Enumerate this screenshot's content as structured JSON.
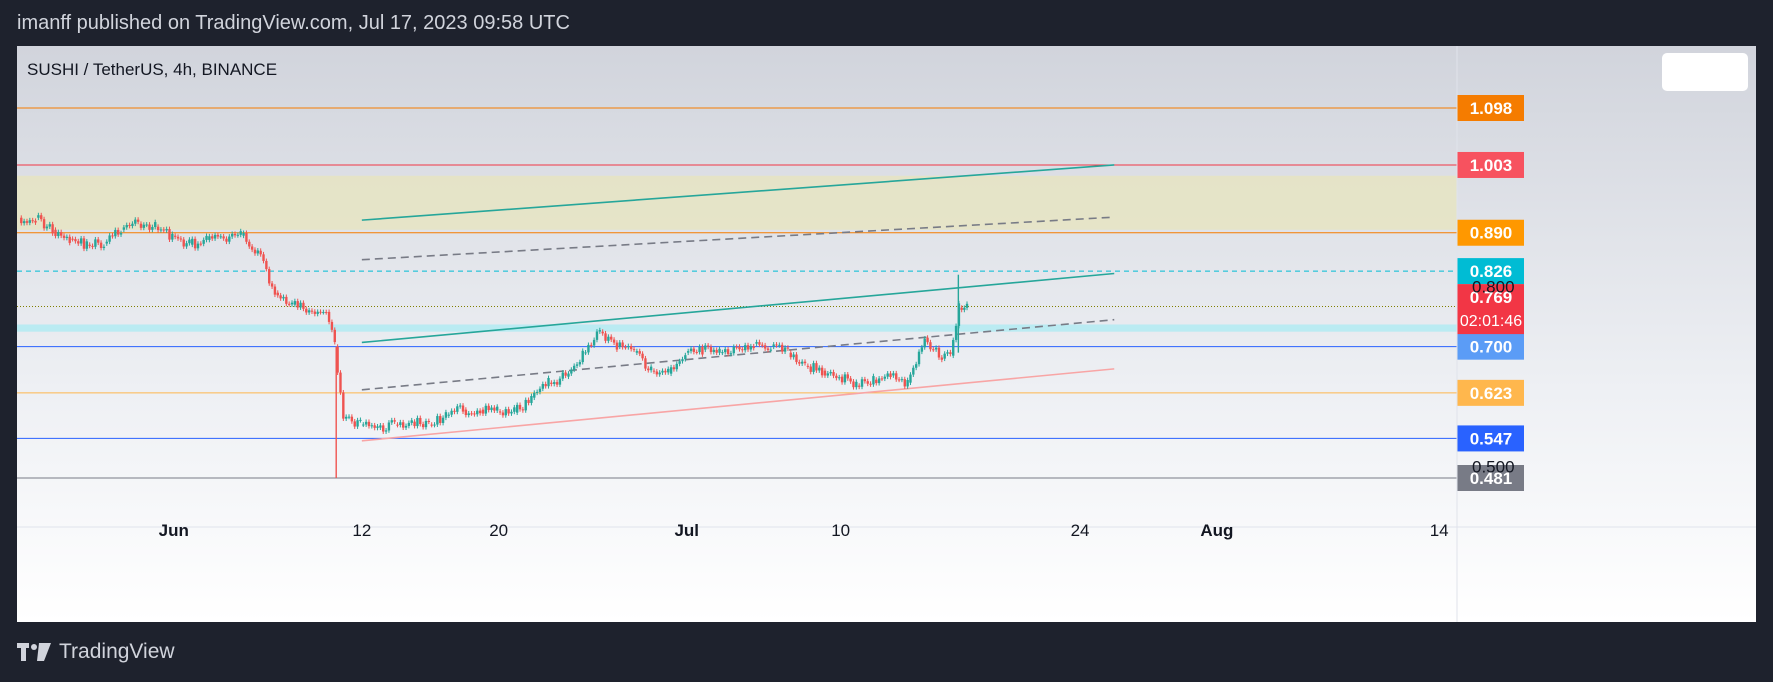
{
  "header": {
    "text": "imanff published on TradingView.com, Jul 17, 2023 09:58 UTC"
  },
  "footer": {
    "brand": "TradingView",
    "logo_icon": "tradingview-logo-icon"
  },
  "chart_data": {
    "type": "candlestick",
    "title": "SUSHI / TetherUS, 4h, BINANCE",
    "ylim": [
      0.45,
      1.15
    ],
    "x_tick_labels": [
      {
        "label": "Jun",
        "date": "2023-06-01"
      },
      {
        "label": "12",
        "date": "2023-06-12"
      },
      {
        "label": "20",
        "date": "2023-06-20"
      },
      {
        "label": "Jul",
        "date": "2023-07-01"
      },
      {
        "label": "10",
        "date": "2023-07-10"
      },
      {
        "label": "24",
        "date": "2023-07-24"
      },
      {
        "label": "Aug",
        "date": "2023-08-01"
      },
      {
        "label": "14",
        "date": "2023-08-14"
      }
    ],
    "y_axis_labels": [
      "0.800",
      "0.500"
    ],
    "current_price": {
      "value": 0.769,
      "label": "0.769",
      "countdown": "02:01:46",
      "color": "#f23645"
    },
    "price_levels": [
      {
        "value": 1.098,
        "label": "1.098",
        "line_color": "#f57c00",
        "badge_color": "#f57c00",
        "style": "solid"
      },
      {
        "value": 1.003,
        "label": "1.003",
        "line_color": "#f23645",
        "badge_color": "#f7525f",
        "style": "solid"
      },
      {
        "value": 0.89,
        "label": "0.890",
        "line_color": "#f57c00",
        "badge_color": "#ff9800",
        "style": "solid"
      },
      {
        "value": 0.826,
        "label": "0.826",
        "line_color": "#00bcd4",
        "badge_color": "#00bcd4",
        "style": "dashed"
      },
      {
        "value": 0.767,
        "label": "0.767",
        "line_color": "#808000",
        "badge_color": "#81c784",
        "style": "dotted"
      },
      {
        "value": 0.7,
        "label": "0.700",
        "line_color": "#2962ff",
        "badge_color": "#5b9cf6",
        "style": "solid"
      },
      {
        "value": 0.623,
        "label": "0.623",
        "line_color": "#ffb74d",
        "badge_color": "#ffb74d",
        "style": "solid"
      },
      {
        "value": 0.547,
        "label": "0.547",
        "line_color": "#2962ff",
        "badge_color": "#2962ff",
        "style": "solid"
      },
      {
        "value": 0.481,
        "label": "0.481",
        "line_color": "#787b86",
        "badge_color": "#787b86",
        "style": "solid"
      }
    ],
    "zones": [
      {
        "from": 0.895,
        "to": 0.985,
        "color": "#e6e4c2"
      },
      {
        "from": 0.725,
        "to": 0.737,
        "color": "#b2ebf2"
      }
    ],
    "trendlines": [
      {
        "x1": "2023-06-12",
        "y1": 0.911,
        "x2": "2023-07-26",
        "y2": 1.003,
        "color": "#26a69a",
        "style": "solid"
      },
      {
        "x1": "2023-06-12",
        "y1": 0.845,
        "x2": "2023-07-26",
        "y2": 0.916,
        "color": "#787b86",
        "style": "dashed"
      },
      {
        "x1": "2023-06-12",
        "y1": 0.707,
        "x2": "2023-07-26",
        "y2": 0.822,
        "color": "#26a69a",
        "style": "solid"
      },
      {
        "x1": "2023-06-12",
        "y1": 0.628,
        "x2": "2023-07-26",
        "y2": 0.745,
        "color": "#787b86",
        "style": "dashed"
      },
      {
        "x1": "2023-06-12",
        "y1": 0.543,
        "x2": "2023-07-26",
        "y2": 0.663,
        "color": "#f8a5a5",
        "style": "solid"
      }
    ],
    "ohlc": [
      {
        "t": "2023-05-23",
        "c": 0.915
      },
      {
        "t": "2023-05-24",
        "c": 0.895
      },
      {
        "t": "2023-05-25",
        "c": 0.88
      },
      {
        "t": "2023-05-26",
        "c": 0.87
      },
      {
        "t": "2023-05-27",
        "c": 0.872
      },
      {
        "t": "2023-05-28",
        "c": 0.895
      },
      {
        "t": "2023-05-29",
        "c": 0.905
      },
      {
        "t": "2023-05-30",
        "c": 0.9
      },
      {
        "t": "2023-05-31",
        "c": 0.885
      },
      {
        "t": "2023-06-01",
        "c": 0.87
      },
      {
        "t": "2023-06-02",
        "c": 0.878
      },
      {
        "t": "2023-06-03",
        "c": 0.88
      },
      {
        "t": "2023-06-04",
        "c": 0.885
      },
      {
        "t": "2023-06-05",
        "c": 0.86
      },
      {
        "t": "2023-06-06",
        "c": 0.79
      },
      {
        "t": "2023-06-07",
        "c": 0.77
      },
      {
        "t": "2023-06-08",
        "c": 0.76
      },
      {
        "t": "2023-06-09",
        "c": 0.758
      },
      {
        "t": "2023-06-10",
        "c": 0.7
      },
      {
        "t": "2023-06-10T12",
        "c": 0.58
      },
      {
        "t": "2023-06-11",
        "c": 0.57
      },
      {
        "t": "2023-06-12",
        "c": 0.565
      },
      {
        "t": "2023-06-13",
        "c": 0.57
      },
      {
        "t": "2023-06-14",
        "c": 0.575
      },
      {
        "t": "2023-06-15",
        "c": 0.57
      },
      {
        "t": "2023-06-16",
        "c": 0.585
      },
      {
        "t": "2023-06-17",
        "c": 0.595
      },
      {
        "t": "2023-06-18",
        "c": 0.595
      },
      {
        "t": "2023-06-19",
        "c": 0.592
      },
      {
        "t": "2023-06-20",
        "c": 0.59
      },
      {
        "t": "2023-06-21",
        "c": 0.615
      },
      {
        "t": "2023-06-22",
        "c": 0.64
      },
      {
        "t": "2023-06-23",
        "c": 0.65
      },
      {
        "t": "2023-06-24",
        "c": 0.69
      },
      {
        "t": "2023-06-25",
        "c": 0.725
      },
      {
        "t": "2023-06-26",
        "c": 0.7
      },
      {
        "t": "2023-06-27",
        "c": 0.69
      },
      {
        "t": "2023-06-28",
        "c": 0.66
      },
      {
        "t": "2023-06-29",
        "c": 0.655
      },
      {
        "t": "2023-06-30",
        "c": 0.69
      },
      {
        "t": "2023-07-01",
        "c": 0.695
      },
      {
        "t": "2023-07-02",
        "c": 0.69
      },
      {
        "t": "2023-07-03",
        "c": 0.7
      },
      {
        "t": "2023-07-04",
        "c": 0.705
      },
      {
        "t": "2023-07-05",
        "c": 0.7
      },
      {
        "t": "2023-07-06",
        "c": 0.69
      },
      {
        "t": "2023-07-07",
        "c": 0.668
      },
      {
        "t": "2023-07-08",
        "c": 0.66
      },
      {
        "t": "2023-07-09",
        "c": 0.65
      },
      {
        "t": "2023-07-10",
        "c": 0.635
      },
      {
        "t": "2023-07-11",
        "c": 0.645
      },
      {
        "t": "2023-07-12",
        "c": 0.652
      },
      {
        "t": "2023-07-13",
        "c": 0.64
      },
      {
        "t": "2023-07-14",
        "c": 0.715
      },
      {
        "t": "2023-07-15",
        "c": 0.68
      },
      {
        "t": "2023-07-16",
        "c": 0.685
      },
      {
        "t": "2023-07-16T12",
        "c": 0.765
      },
      {
        "t": "2023-07-17",
        "c": 0.769
      }
    ]
  }
}
